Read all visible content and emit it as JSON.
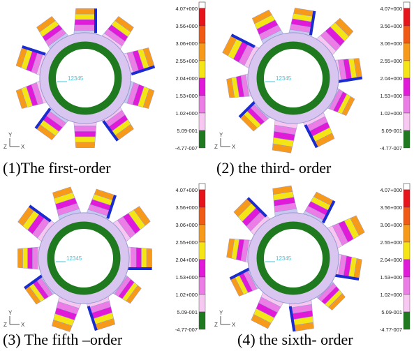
{
  "legend": [
    "4.07+000",
    "3.56+000",
    "3.06+000",
    "2.55+000",
    "2.04+000",
    "1.53+000",
    "1.02+000",
    "5.09-001",
    "-4.77-007"
  ],
  "node_label": "12345",
  "axes": {
    "y": "Y",
    "z": "Z",
    "x": "X"
  },
  "panels": [
    {
      "caption": "(1)The first-order"
    },
    {
      "caption": "(2) the third- order"
    },
    {
      "caption": "(3) The fifth –order"
    },
    {
      "caption": "(4) the sixth- order"
    }
  ]
}
